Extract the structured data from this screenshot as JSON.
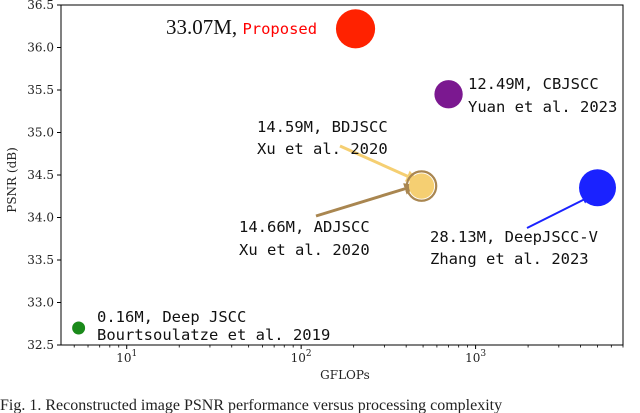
{
  "chart_data": {
    "type": "scatter",
    "xlabel": "GFLOPs",
    "ylabel": "PSNR (dB)",
    "xscale": "log",
    "xlim": [
      4.2,
      7000
    ],
    "ylim": [
      32.5,
      36.5
    ],
    "x_ticks": [
      {
        "value": 10,
        "base": "10",
        "exp": "1"
      },
      {
        "value": 100,
        "base": "10",
        "exp": "2"
      },
      {
        "value": 1000,
        "base": "10",
        "exp": "3"
      }
    ],
    "y_ticks": [
      "32.5",
      "33.0",
      "33.5",
      "34.0",
      "34.5",
      "35.0",
      "35.5",
      "36.0",
      "36.5"
    ],
    "points": [
      {
        "name": "Proposed",
        "gflops": 205,
        "psnr": 36.22,
        "params_m": 33.07,
        "color": "#ff2200",
        "lines": [
          "33.07M, ",
          "Proposed"
        ],
        "label_color": "#ff0000"
      },
      {
        "name": "CBJSCC",
        "gflops": 700,
        "psnr": 35.45,
        "params_m": 12.49,
        "color": "#7b1890",
        "lines": [
          "12.49M, CBJSCC",
          "Yuan et al. 2023"
        ]
      },
      {
        "name": "BDJSCC",
        "gflops": 490,
        "psnr": 34.37,
        "params_m": 14.59,
        "color": "#f5cf72",
        "lines": [
          "14.59M, BDJSCC",
          "Xu et al. 2020"
        ],
        "arrow_color": "#f5cf72"
      },
      {
        "name": "ADJSCC",
        "gflops": 490,
        "psnr": 34.37,
        "params_m": 14.66,
        "color": "#a98650",
        "lines": [
          "14.66M, ADJSCC",
          "Xu et al. 2020"
        ],
        "arrow_color": "#a98650"
      },
      {
        "name": "DeepJSCC-V",
        "gflops": 5000,
        "psnr": 34.35,
        "params_m": 28.13,
        "color": "#1a22ff",
        "lines": [
          "28.13M, DeepJSCC-V",
          "Zhang et al. 2023"
        ],
        "arrow_color": "#1a22ff"
      },
      {
        "name": "Deep JSCC",
        "gflops": 5.3,
        "psnr": 32.7,
        "params_m": 0.16,
        "color": "#1a8a1a",
        "lines": [
          "0.16M, Deep JSCC",
          "Bourtsoulatze et al. 2019"
        ]
      }
    ]
  },
  "caption": "Fig. 1.  Reconstructed image PSNR performance versus processing complexity"
}
